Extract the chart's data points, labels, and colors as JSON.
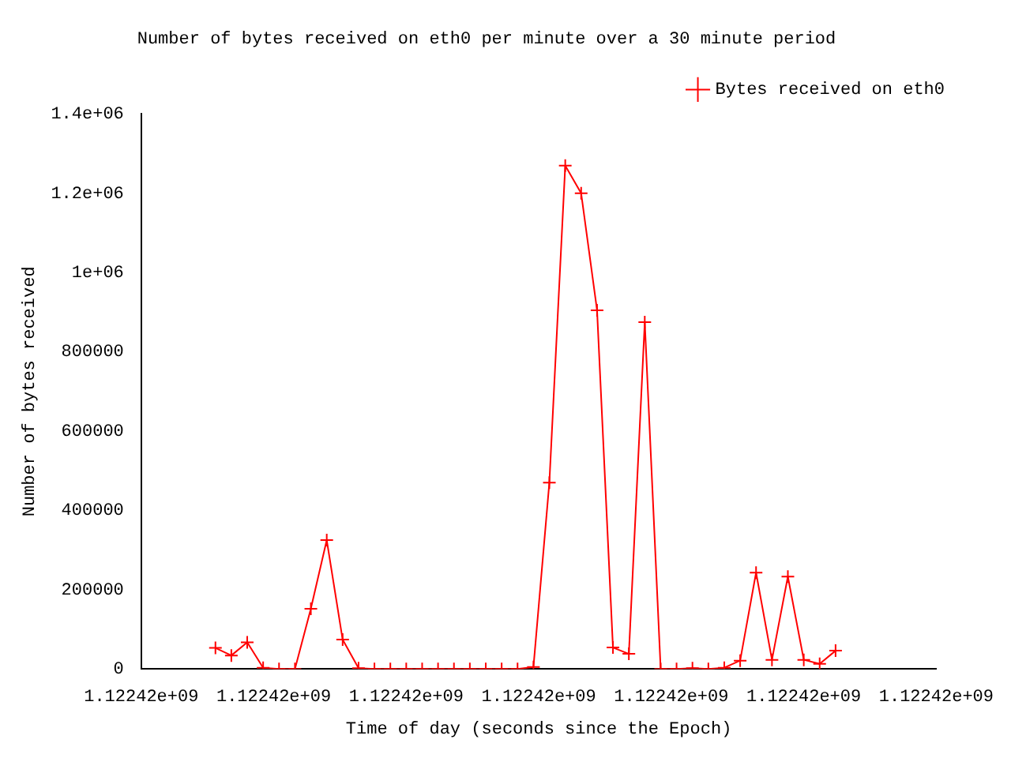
{
  "chart_data": {
    "type": "line",
    "title": "Number of bytes received on eth0 per minute over a 30 minute period",
    "xlabel": "Time of day (seconds since the Epoch)",
    "ylabel": "Number of bytes received",
    "x": [
      1122419780,
      1122419840,
      1122419900,
      1122419960,
      1122420020,
      1122420080,
      1122420140,
      1122420200,
      1122420260,
      1122420320,
      1122420380,
      1122420440,
      1122420500,
      1122420560,
      1122420620,
      1122420680,
      1122420740,
      1122420800,
      1122420860,
      1122420920,
      1122420980,
      1122421040,
      1122421100,
      1122421160,
      1122421220,
      1122421280,
      1122421340,
      1122421400,
      1122421460,
      1122421520,
      1122421580,
      1122421640,
      1122421700,
      1122421760,
      1122421820,
      1122421880,
      1122421940,
      1122422000,
      1122422060,
      1122422120
    ],
    "series": [
      {
        "name": "Bytes received on eth0",
        "color": "#ff0000",
        "values": [
          53000,
          34000,
          67000,
          3000,
          0,
          0,
          152000,
          325000,
          74000,
          2000,
          0,
          0,
          0,
          0,
          0,
          0,
          0,
          0,
          0,
          0,
          5000,
          470000,
          1270000,
          1200000,
          905000,
          54000,
          38000,
          875000,
          0,
          0,
          2000,
          0,
          3000,
          21000,
          243000,
          23000,
          233000,
          23000,
          13000,
          46000
        ]
      }
    ],
    "xlim": [
      1122419500,
      1122422500
    ],
    "xticks": [
      {
        "value": 1122419500,
        "label": "1.12242e+09"
      },
      {
        "value": 1122420000,
        "label": "1.12242e+09"
      },
      {
        "value": 1122420500,
        "label": "1.12242e+09"
      },
      {
        "value": 1122421000,
        "label": "1.12242e+09"
      },
      {
        "value": 1122421500,
        "label": "1.12242e+09"
      },
      {
        "value": 1122422000,
        "label": "1.12242e+09"
      },
      {
        "value": 1122422500,
        "label": "1.12242e+09"
      }
    ],
    "ylim": [
      0,
      1400000
    ],
    "yticks": [
      0,
      200000,
      400000,
      600000,
      800000,
      {
        "value": 1000000,
        "label": "1e+06"
      },
      {
        "value": 1200000,
        "label": "1.2e+06"
      },
      {
        "value": 1400000,
        "label": "1.4e+06"
      }
    ],
    "legend": "top right",
    "marker": "cross",
    "line_style": "solid"
  }
}
